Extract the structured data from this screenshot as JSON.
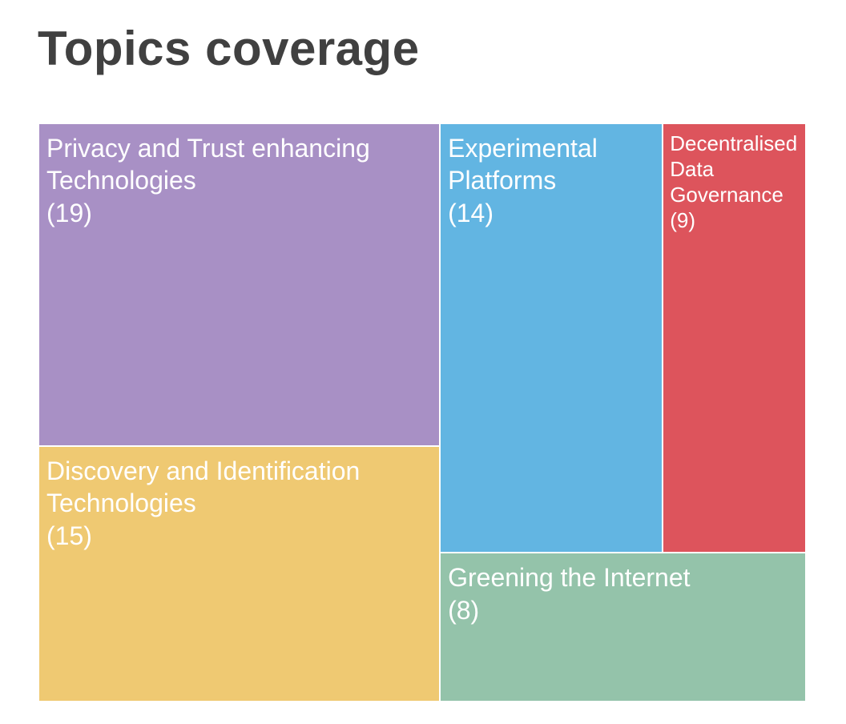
{
  "chart_data": {
    "type": "treemap",
    "title": "Topics coverage",
    "items": [
      {
        "label": "Privacy and Trust enhancing Technologies",
        "value": 19,
        "value_text": "(19)",
        "color": "#a890c5"
      },
      {
        "label": "Discovery and Identification Technologies",
        "value": 15,
        "value_text": "(15)",
        "color": "#efc972"
      },
      {
        "label": "Experimental Platforms",
        "value": 14,
        "value_text": "(14)",
        "color": "#62b5e2"
      },
      {
        "label": "Decentralised Data Governance",
        "value": 9,
        "value_text": "(9)",
        "color": "#dd545c"
      },
      {
        "label": "Greening the Internet",
        "value": 8,
        "value_text": "(8)",
        "color": "#94c3aa"
      }
    ]
  }
}
